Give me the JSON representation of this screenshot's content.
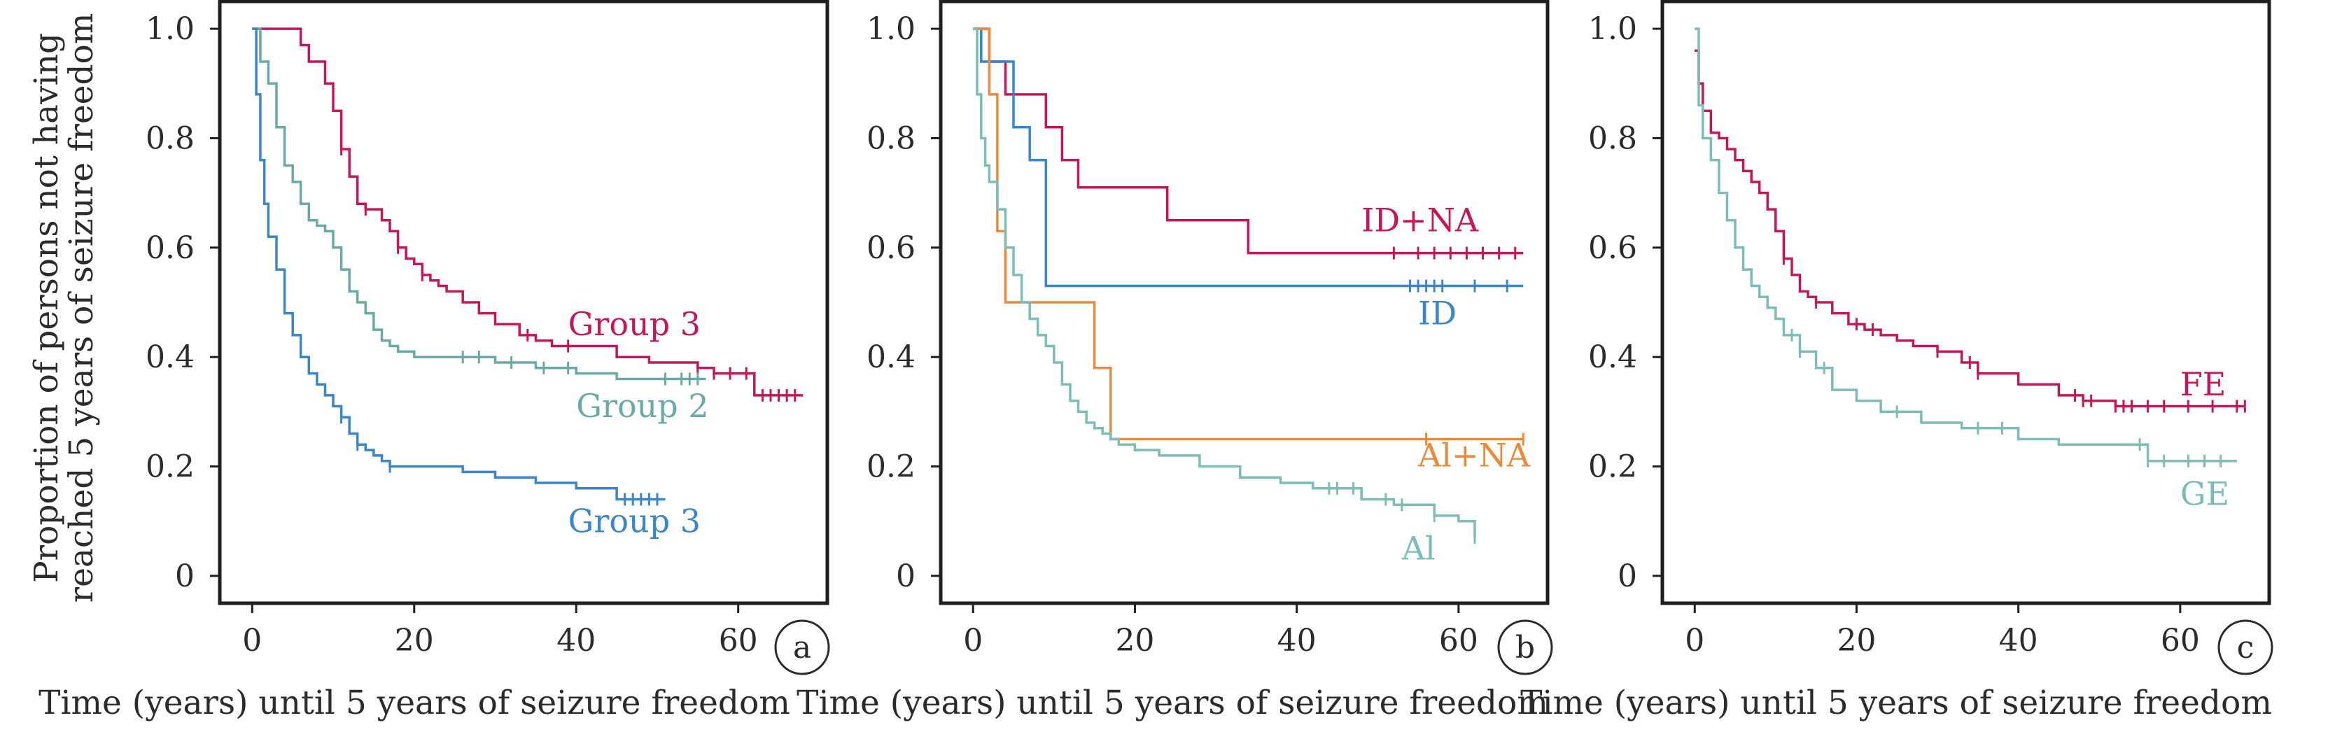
{
  "ylabel": "Proportion of persons not having reached 5 years of seizure freedom",
  "ylabel_lines": [
    "Proportion of persons not having",
    "reached 5 years of seizure freedom"
  ],
  "chart_data": [
    {
      "type": "line",
      "panel": "a",
      "xlabel": "Time (years) until 5 years of seizure freedom",
      "ylabel": "Proportion of persons not having reached 5 years of seizure freedom",
      "xlim": [
        -4,
        71
      ],
      "ylim": [
        -0.05,
        1.05
      ],
      "xticks": [
        0,
        20,
        40,
        60
      ],
      "yticks": [
        0,
        0.2,
        0.4,
        0.6,
        0.8,
        1.0
      ],
      "ytick_labels": [
        "0",
        "0.2",
        "0.4",
        "0.6",
        "0.8",
        "1.0"
      ],
      "series": [
        {
          "name": "Group 3",
          "color": "#c2185b",
          "label_pos": [
            39,
            0.44
          ],
          "x": [
            0,
            6,
            7,
            9,
            10,
            11,
            12,
            13,
            14,
            16,
            17,
            18,
            19,
            20,
            21,
            22,
            23,
            24,
            26,
            28,
            30,
            33,
            35,
            37,
            45,
            49,
            55,
            57,
            62,
            68
          ],
          "y": [
            1.0,
            0.97,
            0.94,
            0.9,
            0.85,
            0.78,
            0.73,
            0.68,
            0.67,
            0.65,
            0.63,
            0.6,
            0.58,
            0.57,
            0.55,
            0.54,
            0.53,
            0.52,
            0.5,
            0.48,
            0.46,
            0.44,
            0.43,
            0.42,
            0.4,
            0.39,
            0.38,
            0.37,
            0.33,
            0.33
          ],
          "censor_x": [
            11,
            14,
            18,
            21,
            34,
            39,
            55,
            57,
            59,
            61,
            63,
            64,
            65,
            66,
            67
          ]
        },
        {
          "name": "Group 2",
          "color": "#6aa9a6",
          "label_pos": [
            40,
            0.29
          ],
          "x": [
            0,
            1,
            2,
            3,
            4,
            5,
            6,
            7,
            8,
            9,
            10,
            11,
            12,
            13,
            14,
            15,
            16,
            17,
            18,
            20,
            25,
            30,
            35,
            40,
            45,
            56
          ],
          "y": [
            1.0,
            0.94,
            0.9,
            0.82,
            0.75,
            0.72,
            0.68,
            0.65,
            0.64,
            0.63,
            0.6,
            0.56,
            0.52,
            0.5,
            0.48,
            0.45,
            0.43,
            0.42,
            0.41,
            0.4,
            0.4,
            0.39,
            0.38,
            0.37,
            0.36,
            0.36
          ],
          "censor_x": [
            26,
            28,
            32,
            36,
            39,
            51,
            53,
            54,
            55
          ]
        },
        {
          "name": "Group 3",
          "color": "#3a86c8",
          "label_pos": [
            39,
            0.08
          ],
          "x": [
            0,
            0.5,
            1,
            1.5,
            2,
            3,
            4,
            5,
            6,
            7,
            8,
            9,
            10,
            11,
            12,
            13,
            14,
            15,
            16,
            17,
            22,
            26,
            30,
            35,
            40,
            45,
            51
          ],
          "y": [
            1.0,
            0.88,
            0.76,
            0.68,
            0.62,
            0.56,
            0.48,
            0.44,
            0.4,
            0.37,
            0.35,
            0.33,
            0.31,
            0.29,
            0.26,
            0.24,
            0.23,
            0.22,
            0.21,
            0.2,
            0.2,
            0.19,
            0.18,
            0.17,
            0.16,
            0.14,
            0.14
          ],
          "censor_x": [
            11,
            13,
            17,
            46,
            47,
            48,
            49,
            50
          ]
        }
      ]
    },
    {
      "type": "line",
      "panel": "b",
      "xlabel": "Time (years) until 5 years of seizure freedom",
      "xlim": [
        -4,
        71
      ],
      "ylim": [
        -0.05,
        1.05
      ],
      "xticks": [
        0,
        20,
        40,
        60
      ],
      "yticks": [
        0,
        0.2,
        0.4,
        0.6,
        0.8,
        1.0
      ],
      "ytick_labels": [
        "0",
        "0.2",
        "0.4",
        "0.6",
        "0.8",
        "1.0"
      ],
      "series": [
        {
          "name": "ID+NA",
          "color": "#c2185b",
          "label_pos": [
            48,
            0.63
          ],
          "x": [
            0,
            2,
            4,
            9,
            11,
            13,
            15,
            24,
            34,
            68
          ],
          "y": [
            1.0,
            0.94,
            0.88,
            0.82,
            0.76,
            0.71,
            0.71,
            0.65,
            0.59,
            0.59
          ],
          "censor_x": [
            52,
            55,
            57,
            59,
            61,
            63,
            65,
            67
          ]
        },
        {
          "name": "ID",
          "color": "#3a86c8",
          "label_pos": [
            55,
            0.46
          ],
          "x": [
            0,
            1,
            2,
            5,
            7,
            9,
            68
          ],
          "y": [
            1.0,
            0.94,
            0.94,
            0.82,
            0.76,
            0.53,
            0.53
          ],
          "censor_x": [
            54,
            55,
            56,
            57,
            58,
            62,
            66
          ]
        },
        {
          "name": "Al+NA",
          "color": "#ea8a3c",
          "label_pos": [
            55,
            0.2
          ],
          "x": [
            0,
            1,
            2,
            3,
            4,
            9,
            13,
            15,
            17,
            68
          ],
          "y": [
            1.0,
            1.0,
            0.88,
            0.63,
            0.5,
            0.5,
            0.5,
            0.38,
            0.25,
            0.25
          ],
          "censor_x": [
            56,
            68
          ]
        },
        {
          "name": "Al",
          "color": "#7dbcb8",
          "label_pos": [
            53,
            0.03
          ],
          "x": [
            0,
            0.5,
            1,
            1.5,
            2,
            3,
            4,
            5,
            6,
            7,
            8,
            9,
            10,
            11,
            12,
            13,
            14,
            15,
            16,
            17,
            18,
            20,
            23,
            28,
            33,
            38,
            42,
            48,
            52,
            57,
            60,
            62
          ],
          "y": [
            1.0,
            0.88,
            0.8,
            0.75,
            0.72,
            0.67,
            0.6,
            0.55,
            0.5,
            0.47,
            0.44,
            0.42,
            0.39,
            0.35,
            0.32,
            0.3,
            0.28,
            0.27,
            0.26,
            0.25,
            0.24,
            0.23,
            0.22,
            0.2,
            0.18,
            0.17,
            0.16,
            0.14,
            0.13,
            0.11,
            0.1,
            0.07
          ],
          "censor_x": [
            44,
            45,
            47,
            51,
            53,
            57,
            62
          ]
        }
      ]
    },
    {
      "type": "line",
      "panel": "c",
      "xlabel": "Time (years) until 5 years of seizure freedom",
      "xlim": [
        -4,
        71
      ],
      "ylim": [
        -0.05,
        1.05
      ],
      "xticks": [
        0,
        20,
        40,
        60
      ],
      "yticks": [
        0,
        0.2,
        0.4,
        0.6,
        0.8,
        1.0
      ],
      "ytick_labels": [
        "0",
        "0.2",
        "0.4",
        "0.6",
        "0.8",
        "1.0"
      ],
      "series": [
        {
          "name": "FE",
          "color": "#c2185b",
          "label_pos": [
            60,
            0.33
          ],
          "x": [
            0,
            0.5,
            1,
            2,
            3,
            4,
            5,
            6,
            7,
            8,
            9,
            10,
            11,
            12,
            13,
            14,
            15,
            17,
            19,
            21,
            23,
            25,
            27,
            30,
            33,
            35,
            40,
            45,
            48,
            52,
            60,
            68
          ],
          "y": [
            0.96,
            0.9,
            0.85,
            0.81,
            0.8,
            0.78,
            0.76,
            0.74,
            0.72,
            0.7,
            0.67,
            0.63,
            0.58,
            0.55,
            0.52,
            0.51,
            0.5,
            0.48,
            0.46,
            0.45,
            0.44,
            0.43,
            0.42,
            0.41,
            0.39,
            0.37,
            0.35,
            0.33,
            0.32,
            0.31,
            0.31,
            0.31
          ],
          "censor_x": [
            11,
            15,
            20,
            22,
            30,
            34,
            35,
            47,
            48,
            49,
            52,
            53,
            54,
            56,
            58,
            61,
            64,
            67,
            68
          ]
        },
        {
          "name": "GE",
          "color": "#7dbcb8",
          "label_pos": [
            60,
            0.13
          ],
          "x": [
            0,
            0.5,
            1,
            2,
            3,
            4,
            5,
            6,
            7,
            8,
            9,
            10,
            11,
            13,
            15,
            17,
            20,
            23,
            28,
            33,
            40,
            45,
            50,
            56,
            67
          ],
          "y": [
            1.0,
            0.86,
            0.8,
            0.76,
            0.7,
            0.65,
            0.6,
            0.56,
            0.53,
            0.51,
            0.49,
            0.47,
            0.44,
            0.41,
            0.38,
            0.34,
            0.32,
            0.3,
            0.28,
            0.27,
            0.25,
            0.24,
            0.24,
            0.21,
            0.21
          ],
          "censor_x": [
            12,
            13,
            16,
            25,
            35,
            38,
            55,
            56,
            58,
            61,
            63,
            65
          ]
        }
      ]
    }
  ]
}
